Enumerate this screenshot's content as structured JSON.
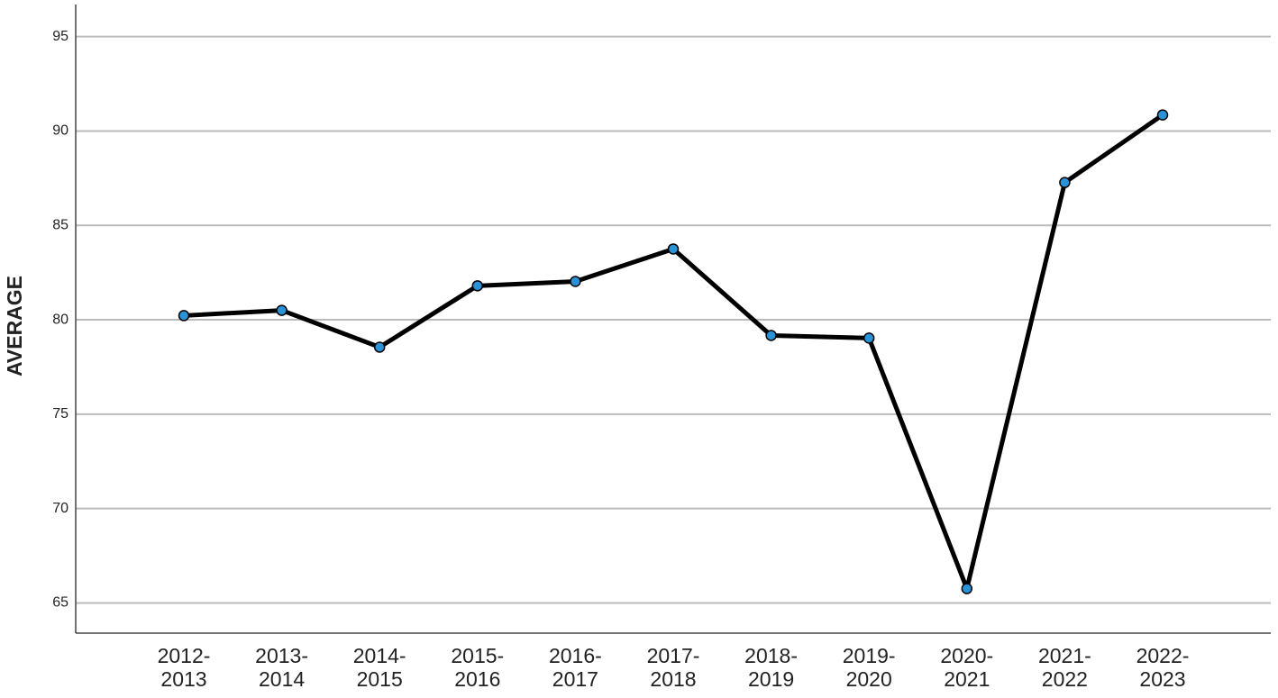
{
  "chart_data": {
    "type": "line",
    "y_label": "AVERAGE",
    "categories": [
      "2012-2013",
      "2013-2014",
      "2014-2015",
      "2015-2016",
      "2016-2017",
      "2017-2018",
      "2018-2019",
      "2019-2020",
      "2020-2021",
      "2021-2022",
      "2022-2023"
    ],
    "values": [
      80.22,
      80.5,
      78.55,
      81.8,
      82.03,
      83.75,
      79.17,
      79.03,
      65.76,
      87.27,
      90.85
    ],
    "color": "#000000",
    "marker_color": "#2a93d8",
    "ylim": [
      63.4,
      96.7
    ],
    "yticks": [
      65,
      70,
      75,
      80,
      85,
      90,
      95
    ],
    "grid": true
  }
}
